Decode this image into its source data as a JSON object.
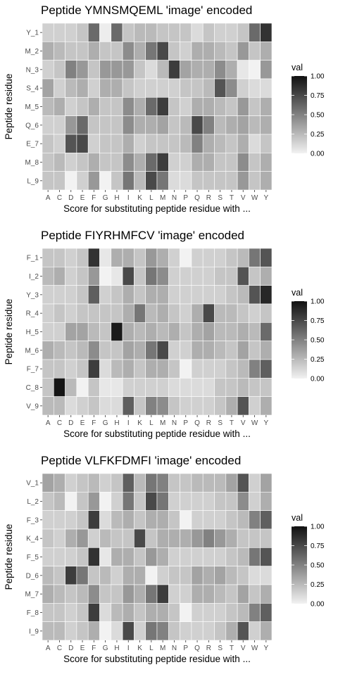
{
  "chart_data": [
    {
      "type": "heatmap",
      "title": "Peptide YMNSMQEML 'image' encoded",
      "xlabel": "Score for substituting peptide residue with ...",
      "ylabel": "Peptide residue",
      "x_categories": [
        "A",
        "C",
        "D",
        "E",
        "F",
        "G",
        "H",
        "I",
        "K",
        "L",
        "M",
        "N",
        "P",
        "Q",
        "R",
        "S",
        "T",
        "V",
        "W",
        "Y"
      ],
      "y_categories": [
        "Y_1",
        "M_2",
        "N_3",
        "S_4",
        "M_5",
        "Q_6",
        "E_7",
        "M_8",
        "L_9"
      ],
      "values": [
        [
          0.15,
          0.15,
          0.15,
          0.2,
          0.6,
          0.02,
          0.6,
          0.2,
          0.25,
          0.25,
          0.2,
          0.2,
          0.2,
          0.1,
          0.2,
          0.15,
          0.15,
          0.2,
          0.6,
          0.85
        ],
        [
          0.3,
          0.25,
          0.2,
          0.2,
          0.3,
          0.2,
          0.2,
          0.45,
          0.3,
          0.55,
          0.75,
          0.2,
          0.15,
          0.3,
          0.3,
          0.25,
          0.2,
          0.4,
          0.2,
          0.3
        ],
        [
          0.15,
          0.2,
          0.5,
          0.4,
          0.2,
          0.4,
          0.4,
          0.4,
          0.2,
          0.1,
          0.25,
          0.8,
          0.35,
          0.3,
          0.3,
          0.45,
          0.3,
          0.05,
          0.0,
          0.4
        ],
        [
          0.35,
          0.15,
          0.25,
          0.3,
          0.15,
          0.3,
          0.3,
          0.2,
          0.15,
          0.15,
          0.15,
          0.15,
          0.2,
          0.2,
          0.25,
          0.7,
          0.45,
          0.15,
          0.1,
          0.1
        ],
        [
          0.25,
          0.3,
          0.15,
          0.2,
          0.3,
          0.2,
          0.2,
          0.45,
          0.3,
          0.6,
          0.8,
          0.2,
          0.15,
          0.3,
          0.3,
          0.25,
          0.2,
          0.4,
          0.2,
          0.3
        ],
        [
          0.15,
          0.15,
          0.4,
          0.6,
          0.2,
          0.2,
          0.2,
          0.45,
          0.3,
          0.3,
          0.35,
          0.2,
          0.25,
          0.75,
          0.5,
          0.25,
          0.3,
          0.35,
          0.25,
          0.3
        ],
        [
          0.2,
          0.15,
          0.7,
          0.75,
          0.15,
          0.2,
          0.2,
          0.3,
          0.15,
          0.2,
          0.2,
          0.2,
          0.25,
          0.5,
          0.3,
          0.25,
          0.2,
          0.3,
          0.1,
          0.2
        ],
        [
          0.2,
          0.25,
          0.15,
          0.2,
          0.3,
          0.2,
          0.2,
          0.45,
          0.3,
          0.6,
          0.8,
          0.15,
          0.15,
          0.3,
          0.3,
          0.2,
          0.2,
          0.45,
          0.2,
          0.3
        ],
        [
          0.2,
          0.2,
          0.0,
          0.15,
          0.4,
          0.0,
          0.2,
          0.55,
          0.25,
          0.75,
          0.55,
          0.1,
          0.1,
          0.2,
          0.2,
          0.2,
          0.2,
          0.4,
          0.2,
          0.3
        ]
      ],
      "legend": {
        "title": "val",
        "ticks": [
          "1.00",
          "0.75",
          "0.50",
          "0.25",
          "0.00"
        ],
        "range": [
          0,
          1
        ]
      }
    },
    {
      "type": "heatmap",
      "title": "Peptide FIYRHMFCV 'image' encoded",
      "xlabel": "Score for substituting peptide residue with ...",
      "ylabel": "Peptide residue",
      "x_categories": [
        "A",
        "C",
        "D",
        "E",
        "F",
        "G",
        "H",
        "I",
        "K",
        "L",
        "M",
        "N",
        "P",
        "Q",
        "R",
        "S",
        "T",
        "V",
        "W",
        "Y"
      ],
      "y_categories": [
        "F_1",
        "I_2",
        "Y_3",
        "R_4",
        "H_5",
        "M_6",
        "F_7",
        "C_8",
        "V_9"
      ],
      "values": [
        [
          0.2,
          0.2,
          0.15,
          0.2,
          0.85,
          0.05,
          0.3,
          0.3,
          0.2,
          0.4,
          0.3,
          0.15,
          0.0,
          0.15,
          0.15,
          0.15,
          0.2,
          0.25,
          0.55,
          0.7
        ],
        [
          0.25,
          0.3,
          0.15,
          0.2,
          0.4,
          0.0,
          0.05,
          0.75,
          0.2,
          0.55,
          0.45,
          0.15,
          0.15,
          0.15,
          0.15,
          0.2,
          0.2,
          0.7,
          0.2,
          0.3
        ],
        [
          0.15,
          0.15,
          0.15,
          0.2,
          0.65,
          0.15,
          0.2,
          0.3,
          0.2,
          0.3,
          0.3,
          0.15,
          0.15,
          0.15,
          0.15,
          0.15,
          0.2,
          0.25,
          0.7,
          0.9
        ],
        [
          0.15,
          0.2,
          0.15,
          0.2,
          0.2,
          0.2,
          0.2,
          0.3,
          0.55,
          0.25,
          0.3,
          0.2,
          0.15,
          0.3,
          0.75,
          0.25,
          0.25,
          0.2,
          0.15,
          0.2
        ],
        [
          0.15,
          0.15,
          0.35,
          0.35,
          0.25,
          0.2,
          0.95,
          0.3,
          0.25,
          0.3,
          0.25,
          0.3,
          0.2,
          0.3,
          0.35,
          0.25,
          0.25,
          0.3,
          0.25,
          0.6
        ],
        [
          0.3,
          0.25,
          0.2,
          0.25,
          0.45,
          0.2,
          0.2,
          0.35,
          0.3,
          0.55,
          0.75,
          0.15,
          0.15,
          0.3,
          0.3,
          0.25,
          0.2,
          0.35,
          0.2,
          0.3
        ],
        [
          0.2,
          0.2,
          0.15,
          0.2,
          0.8,
          0.1,
          0.25,
          0.3,
          0.2,
          0.3,
          0.3,
          0.2,
          0.0,
          0.15,
          0.15,
          0.15,
          0.2,
          0.25,
          0.5,
          0.65
        ],
        [
          0.2,
          0.98,
          0.25,
          0.0,
          0.2,
          0.05,
          0.05,
          0.15,
          0.15,
          0.15,
          0.15,
          0.1,
          0.1,
          0.1,
          0.1,
          0.2,
          0.2,
          0.25,
          0.2,
          0.2
        ],
        [
          0.25,
          0.25,
          0.1,
          0.15,
          0.2,
          0.1,
          0.1,
          0.65,
          0.2,
          0.5,
          0.45,
          0.2,
          0.15,
          0.15,
          0.15,
          0.2,
          0.3,
          0.7,
          0.15,
          0.3
        ]
      ],
      "legend": {
        "title": "val",
        "ticks": [
          "1.00",
          "0.75",
          "0.50",
          "0.25",
          "0.00"
        ],
        "range": [
          0,
          1
        ]
      }
    },
    {
      "type": "heatmap",
      "title": "Peptide VLFKFDMFI 'image' encoded",
      "xlabel": "Score for substituting peptide residue with ...",
      "ylabel": "Peptide residue",
      "x_categories": [
        "A",
        "C",
        "D",
        "E",
        "F",
        "G",
        "H",
        "I",
        "K",
        "L",
        "M",
        "N",
        "P",
        "Q",
        "R",
        "S",
        "T",
        "V",
        "W",
        "Y"
      ],
      "y_categories": [
        "V_1",
        "L_2",
        "F_3",
        "K_4",
        "F_5",
        "D_6",
        "M_7",
        "F_8",
        "I_9"
      ],
      "values": [
        [
          0.35,
          0.3,
          0.15,
          0.2,
          0.25,
          0.15,
          0.2,
          0.65,
          0.25,
          0.55,
          0.5,
          0.2,
          0.2,
          0.25,
          0.25,
          0.25,
          0.35,
          0.7,
          0.15,
          0.35
        ],
        [
          0.2,
          0.25,
          0.0,
          0.2,
          0.4,
          0.0,
          0.15,
          0.55,
          0.2,
          0.75,
          0.55,
          0.15,
          0.15,
          0.15,
          0.15,
          0.2,
          0.2,
          0.45,
          0.15,
          0.3
        ],
        [
          0.15,
          0.15,
          0.15,
          0.2,
          0.8,
          0.1,
          0.25,
          0.3,
          0.2,
          0.3,
          0.3,
          0.2,
          0.0,
          0.15,
          0.15,
          0.15,
          0.2,
          0.25,
          0.5,
          0.65
        ],
        [
          0.2,
          0.15,
          0.3,
          0.4,
          0.15,
          0.25,
          0.2,
          0.2,
          0.75,
          0.2,
          0.3,
          0.3,
          0.3,
          0.4,
          0.5,
          0.4,
          0.3,
          0.2,
          0.2,
          0.2
        ],
        [
          0.15,
          0.15,
          0.15,
          0.2,
          0.85,
          0.05,
          0.3,
          0.3,
          0.2,
          0.4,
          0.3,
          0.15,
          0.15,
          0.15,
          0.15,
          0.15,
          0.2,
          0.25,
          0.55,
          0.7
        ],
        [
          0.25,
          0.2,
          0.8,
          0.55,
          0.2,
          0.25,
          0.15,
          0.3,
          0.3,
          0.0,
          0.15,
          0.2,
          0.2,
          0.35,
          0.3,
          0.35,
          0.25,
          0.2,
          0.1,
          0.1
        ],
        [
          0.3,
          0.25,
          0.2,
          0.25,
          0.45,
          0.2,
          0.2,
          0.4,
          0.3,
          0.55,
          0.8,
          0.15,
          0.15,
          0.3,
          0.3,
          0.25,
          0.2,
          0.35,
          0.2,
          0.3
        ],
        [
          0.2,
          0.2,
          0.15,
          0.2,
          0.8,
          0.1,
          0.25,
          0.3,
          0.2,
          0.3,
          0.3,
          0.2,
          0.0,
          0.15,
          0.15,
          0.15,
          0.2,
          0.25,
          0.5,
          0.65
        ],
        [
          0.25,
          0.25,
          0.15,
          0.2,
          0.3,
          0.0,
          0.1,
          0.75,
          0.15,
          0.55,
          0.5,
          0.2,
          0.15,
          0.15,
          0.15,
          0.2,
          0.3,
          0.7,
          0.15,
          0.3
        ]
      ],
      "legend": {
        "title": "val",
        "ticks": [
          "1.00",
          "0.75",
          "0.50",
          "0.25",
          "0.00"
        ],
        "range": [
          0,
          1
        ]
      }
    }
  ]
}
